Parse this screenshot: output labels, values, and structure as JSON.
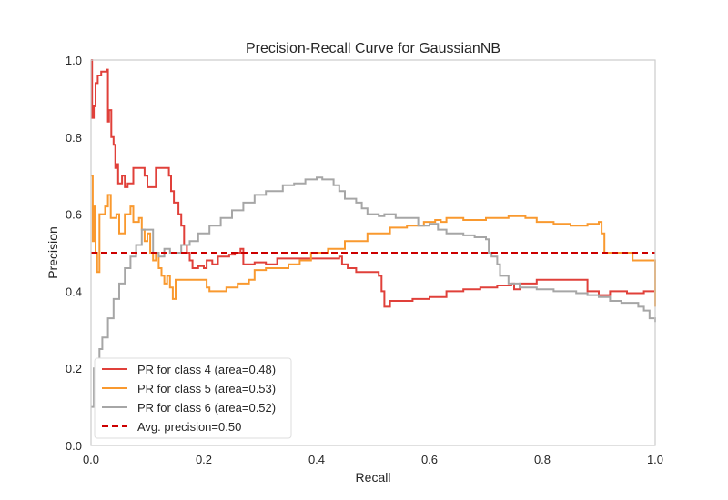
{
  "chart_data": {
    "type": "line",
    "title": "Precision-Recall Curve for GaussianNB",
    "xlabel": "Recall",
    "ylabel": "Precision",
    "xlim": [
      0.0,
      1.0
    ],
    "ylim": [
      0.0,
      1.0
    ],
    "x_ticks": [
      "0.0",
      "0.2",
      "0.4",
      "0.6",
      "0.8",
      "1.0"
    ],
    "y_ticks": [
      "0.0",
      "0.2",
      "0.4",
      "0.6",
      "0.8",
      "1.0"
    ],
    "grid": false,
    "legend_position": "bottom-left",
    "series": [
      {
        "name": "PR for class 4 (area=0.48)",
        "color": "#e0403a",
        "style": "step",
        "points": [
          [
            0.0,
            1.0
          ],
          [
            0.002,
            0.85
          ],
          [
            0.005,
            0.88
          ],
          [
            0.008,
            0.94
          ],
          [
            0.012,
            0.96
          ],
          [
            0.015,
            0.96
          ],
          [
            0.018,
            0.97
          ],
          [
            0.025,
            0.97
          ],
          [
            0.028,
            0.975
          ],
          [
            0.03,
            0.84
          ],
          [
            0.032,
            0.87
          ],
          [
            0.036,
            0.8
          ],
          [
            0.04,
            0.78
          ],
          [
            0.043,
            0.72
          ],
          [
            0.045,
            0.73
          ],
          [
            0.048,
            0.68
          ],
          [
            0.055,
            0.7
          ],
          [
            0.06,
            0.67
          ],
          [
            0.065,
            0.68
          ],
          [
            0.075,
            0.72
          ],
          [
            0.09,
            0.72
          ],
          [
            0.095,
            0.7
          ],
          [
            0.1,
            0.67
          ],
          [
            0.115,
            0.72
          ],
          [
            0.135,
            0.72
          ],
          [
            0.138,
            0.7
          ],
          [
            0.142,
            0.66
          ],
          [
            0.147,
            0.63
          ],
          [
            0.155,
            0.6
          ],
          [
            0.16,
            0.57
          ],
          [
            0.165,
            0.52
          ],
          [
            0.17,
            0.5
          ],
          [
            0.175,
            0.48
          ],
          [
            0.18,
            0.46
          ],
          [
            0.19,
            0.465
          ],
          [
            0.2,
            0.46
          ],
          [
            0.205,
            0.48
          ],
          [
            0.215,
            0.47
          ],
          [
            0.225,
            0.49
          ],
          [
            0.245,
            0.495
          ],
          [
            0.255,
            0.5
          ],
          [
            0.265,
            0.51
          ],
          [
            0.27,
            0.47
          ],
          [
            0.29,
            0.475
          ],
          [
            0.31,
            0.47
          ],
          [
            0.33,
            0.485
          ],
          [
            0.37,
            0.485
          ],
          [
            0.41,
            0.485
          ],
          [
            0.44,
            0.49
          ],
          [
            0.445,
            0.47
          ],
          [
            0.455,
            0.46
          ],
          [
            0.47,
            0.45
          ],
          [
            0.5,
            0.45
          ],
          [
            0.51,
            0.44
          ],
          [
            0.515,
            0.4
          ],
          [
            0.52,
            0.36
          ],
          [
            0.53,
            0.375
          ],
          [
            0.55,
            0.375
          ],
          [
            0.57,
            0.38
          ],
          [
            0.6,
            0.385
          ],
          [
            0.63,
            0.4
          ],
          [
            0.66,
            0.405
          ],
          [
            0.69,
            0.41
          ],
          [
            0.72,
            0.415
          ],
          [
            0.745,
            0.42
          ],
          [
            0.75,
            0.405
          ],
          [
            0.76,
            0.42
          ],
          [
            0.79,
            0.43
          ],
          [
            0.83,
            0.43
          ],
          [
            0.87,
            0.43
          ],
          [
            0.88,
            0.4
          ],
          [
            0.9,
            0.39
          ],
          [
            0.92,
            0.4
          ],
          [
            0.95,
            0.395
          ],
          [
            0.98,
            0.4
          ],
          [
            1.0,
            0.4
          ],
          [
            1.0,
            0.37
          ]
        ]
      },
      {
        "name": "PR for class 5 (area=0.53)",
        "color": "#f9992f",
        "style": "step",
        "points": [
          [
            0.0,
            0.7
          ],
          [
            0.003,
            0.53
          ],
          [
            0.006,
            0.62
          ],
          [
            0.008,
            0.5
          ],
          [
            0.011,
            0.45
          ],
          [
            0.015,
            0.6
          ],
          [
            0.025,
            0.62
          ],
          [
            0.03,
            0.65
          ],
          [
            0.035,
            0.59
          ],
          [
            0.045,
            0.6
          ],
          [
            0.05,
            0.55
          ],
          [
            0.06,
            0.6
          ],
          [
            0.07,
            0.62
          ],
          [
            0.075,
            0.58
          ],
          [
            0.085,
            0.59
          ],
          [
            0.09,
            0.56
          ],
          [
            0.095,
            0.53
          ],
          [
            0.1,
            0.55
          ],
          [
            0.105,
            0.5
          ],
          [
            0.11,
            0.48
          ],
          [
            0.115,
            0.5
          ],
          [
            0.12,
            0.46
          ],
          [
            0.125,
            0.44
          ],
          [
            0.13,
            0.42
          ],
          [
            0.135,
            0.44
          ],
          [
            0.14,
            0.41
          ],
          [
            0.145,
            0.38
          ],
          [
            0.15,
            0.43
          ],
          [
            0.19,
            0.43
          ],
          [
            0.2,
            0.43
          ],
          [
            0.205,
            0.41
          ],
          [
            0.21,
            0.4
          ],
          [
            0.22,
            0.4
          ],
          [
            0.24,
            0.41
          ],
          [
            0.26,
            0.42
          ],
          [
            0.28,
            0.43
          ],
          [
            0.29,
            0.455
          ],
          [
            0.31,
            0.46
          ],
          [
            0.35,
            0.47
          ],
          [
            0.37,
            0.48
          ],
          [
            0.39,
            0.5
          ],
          [
            0.42,
            0.51
          ],
          [
            0.45,
            0.53
          ],
          [
            0.49,
            0.55
          ],
          [
            0.53,
            0.565
          ],
          [
            0.56,
            0.57
          ],
          [
            0.59,
            0.58
          ],
          [
            0.61,
            0.585
          ],
          [
            0.62,
            0.58
          ],
          [
            0.63,
            0.59
          ],
          [
            0.66,
            0.585
          ],
          [
            0.7,
            0.59
          ],
          [
            0.74,
            0.595
          ],
          [
            0.77,
            0.59
          ],
          [
            0.79,
            0.58
          ],
          [
            0.82,
            0.575
          ],
          [
            0.85,
            0.57
          ],
          [
            0.88,
            0.575
          ],
          [
            0.9,
            0.58
          ],
          [
            0.905,
            0.55
          ],
          [
            0.91,
            0.5
          ],
          [
            0.93,
            0.5
          ],
          [
            0.96,
            0.48
          ],
          [
            1.0,
            0.48
          ],
          [
            1.0,
            0.36
          ]
        ]
      },
      {
        "name": "PR for class 6 (area=0.52)",
        "color": "#a6a6a6",
        "style": "step",
        "points": [
          [
            0.0,
            0.1
          ],
          [
            0.005,
            0.2
          ],
          [
            0.01,
            0.16
          ],
          [
            0.015,
            0.25
          ],
          [
            0.02,
            0.28
          ],
          [
            0.03,
            0.33
          ],
          [
            0.04,
            0.38
          ],
          [
            0.05,
            0.42
          ],
          [
            0.06,
            0.46
          ],
          [
            0.07,
            0.49
          ],
          [
            0.08,
            0.52
          ],
          [
            0.09,
            0.56
          ],
          [
            0.1,
            0.56
          ],
          [
            0.11,
            0.5
          ],
          [
            0.12,
            0.49
          ],
          [
            0.13,
            0.51
          ],
          [
            0.14,
            0.5
          ],
          [
            0.15,
            0.5
          ],
          [
            0.16,
            0.52
          ],
          [
            0.175,
            0.53
          ],
          [
            0.19,
            0.55
          ],
          [
            0.21,
            0.57
          ],
          [
            0.23,
            0.59
          ],
          [
            0.25,
            0.61
          ],
          [
            0.27,
            0.63
          ],
          [
            0.29,
            0.65
          ],
          [
            0.31,
            0.66
          ],
          [
            0.34,
            0.675
          ],
          [
            0.36,
            0.68
          ],
          [
            0.38,
            0.69
          ],
          [
            0.4,
            0.695
          ],
          [
            0.41,
            0.69
          ],
          [
            0.43,
            0.675
          ],
          [
            0.44,
            0.66
          ],
          [
            0.45,
            0.64
          ],
          [
            0.47,
            0.63
          ],
          [
            0.48,
            0.615
          ],
          [
            0.49,
            0.6
          ],
          [
            0.51,
            0.595
          ],
          [
            0.52,
            0.6
          ],
          [
            0.54,
            0.59
          ],
          [
            0.56,
            0.59
          ],
          [
            0.58,
            0.57
          ],
          [
            0.6,
            0.575
          ],
          [
            0.615,
            0.56
          ],
          [
            0.63,
            0.55
          ],
          [
            0.66,
            0.545
          ],
          [
            0.68,
            0.54
          ],
          [
            0.7,
            0.535
          ],
          [
            0.705,
            0.5
          ],
          [
            0.71,
            0.49
          ],
          [
            0.72,
            0.47
          ],
          [
            0.725,
            0.44
          ],
          [
            0.74,
            0.42
          ],
          [
            0.76,
            0.41
          ],
          [
            0.79,
            0.405
          ],
          [
            0.82,
            0.4
          ],
          [
            0.86,
            0.395
          ],
          [
            0.88,
            0.39
          ],
          [
            0.9,
            0.385
          ],
          [
            0.92,
            0.375
          ],
          [
            0.94,
            0.37
          ],
          [
            0.96,
            0.37
          ],
          [
            0.97,
            0.36
          ],
          [
            0.98,
            0.35
          ],
          [
            0.99,
            0.33
          ],
          [
            1.0,
            0.32
          ]
        ]
      }
    ],
    "reference_line": {
      "name": "Avg. precision=0.50",
      "y": 0.5,
      "color": "#cc0000",
      "dash": true
    }
  }
}
